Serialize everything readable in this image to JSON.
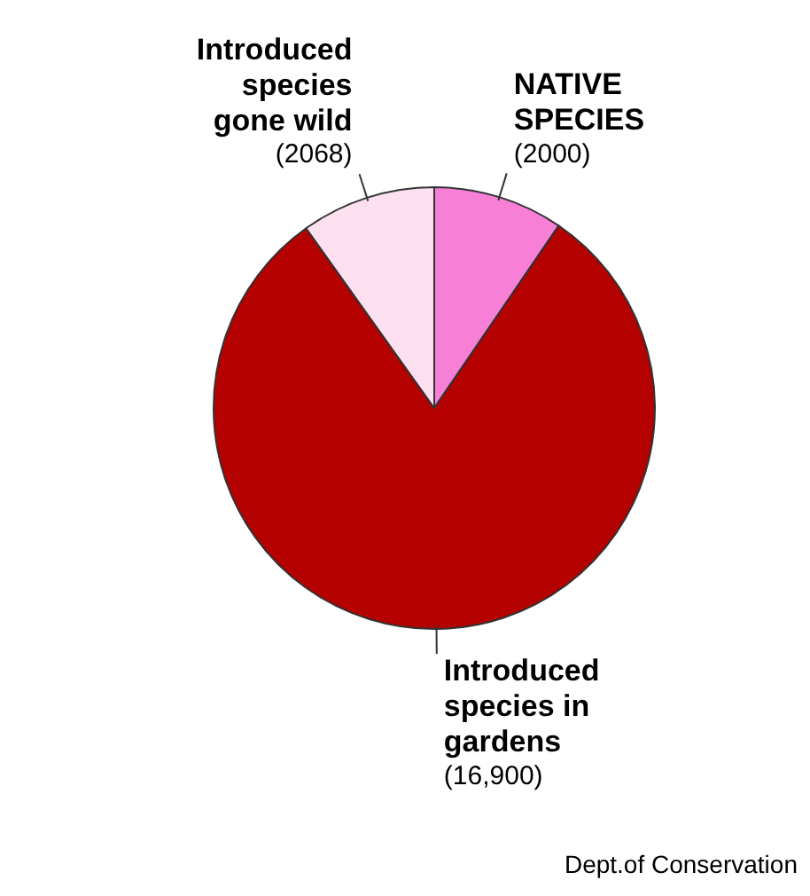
{
  "chart_data": {
    "type": "pie",
    "categories": [
      "NATIVE SPECIES",
      "Introduced species in gardens",
      "Introduced species gone wild"
    ],
    "values": [
      2000,
      16900,
      2068
    ],
    "value_labels": [
      "(2000)",
      "(16,900)",
      "(2068)"
    ],
    "colors": [
      "#f77fd6",
      "#b50000",
      "#fde0f0"
    ],
    "legend": false,
    "annotations": [
      "Dept.of Conservation"
    ]
  }
}
